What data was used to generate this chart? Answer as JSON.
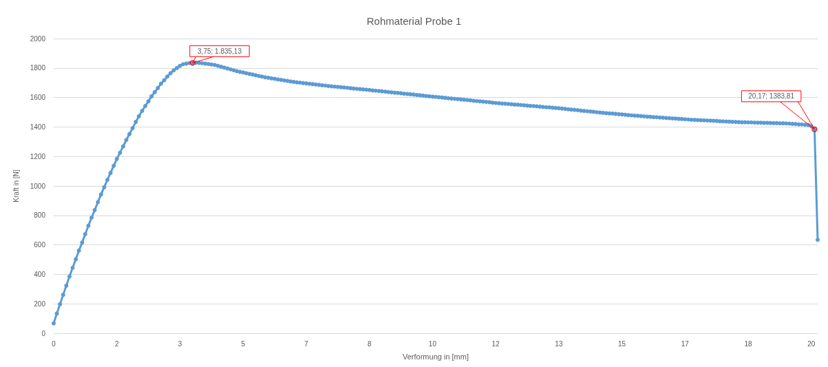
{
  "chart_data": {
    "type": "line",
    "title": "Rohmaterial Probe 1",
    "xlabel": "Verformung in [mm]",
    "ylabel": "Kraft in [N]",
    "categories": [
      "0",
      null,
      null,
      null,
      null,
      null,
      null,
      null,
      null,
      null,
      null,
      null,
      null,
      null,
      null,
      null,
      null,
      null,
      null,
      null,
      "2",
      null,
      null,
      null,
      null,
      null,
      null,
      null,
      null,
      null,
      null,
      null,
      null,
      null,
      null,
      null,
      null,
      null,
      null,
      null,
      "3",
      null,
      null,
      null,
      null,
      null,
      null,
      null,
      null,
      null,
      null,
      null,
      null,
      null,
      null,
      null,
      null,
      null,
      null,
      null,
      "5",
      null,
      null,
      null,
      null,
      null,
      null,
      null,
      null,
      null,
      null,
      null,
      null,
      null,
      null,
      null,
      null,
      null,
      null,
      null,
      "7",
      null,
      null,
      null,
      null,
      null,
      null,
      null,
      null,
      null,
      null,
      null,
      null,
      null,
      null,
      null,
      null,
      null,
      null,
      null,
      "8",
      null,
      null,
      null,
      null,
      null,
      null,
      null,
      null,
      null,
      null,
      null,
      null,
      null,
      null,
      null,
      null,
      null,
      null,
      null,
      "10",
      null,
      null,
      null,
      null,
      null,
      null,
      null,
      null,
      null,
      null,
      null,
      null,
      null,
      null,
      null,
      null,
      null,
      null,
      null,
      "12",
      null,
      null,
      null,
      null,
      null,
      null,
      null,
      null,
      null,
      null,
      null,
      null,
      null,
      null,
      null,
      null,
      null,
      null,
      null,
      "13",
      null,
      null,
      null,
      null,
      null,
      null,
      null,
      null,
      null,
      null,
      null,
      null,
      null,
      null,
      null,
      null,
      null,
      null,
      null,
      "15",
      null,
      null,
      null,
      null,
      null,
      null,
      null,
      null,
      null,
      null,
      null,
      null,
      null,
      null,
      null,
      null,
      null,
      null,
      null,
      "17",
      null,
      null,
      null,
      null,
      null,
      null,
      null,
      null,
      null,
      null,
      null,
      null,
      null,
      null,
      null,
      null,
      null,
      null,
      null,
      "18",
      null,
      null,
      null,
      null,
      null,
      null,
      null,
      null,
      null,
      null,
      null,
      null,
      null,
      null,
      null,
      null,
      null,
      null,
      null,
      "20",
      null,
      null
    ],
    "series": [
      {
        "color": "#5b9bd5",
        "values": [
          67,
          134,
          197,
          261,
          323,
          385,
          444,
          502,
          561,
          615,
          673,
          730,
          785,
          836,
          890,
          942,
          991,
          1041,
          1088,
          1136,
          1183,
          1225,
          1268,
          1312,
          1352,
          1392,
          1434,
          1473,
          1509,
          1542,
          1574,
          1608,
          1636,
          1664,
          1694,
          1717,
          1742,
          1765,
          1784,
          1800,
          1815,
          1826,
          1830,
          1834,
          1835,
          1836,
          1835,
          1833,
          1830,
          1827,
          1824,
          1821,
          1815,
          1809,
          1803,
          1797,
          1791,
          1785,
          1779,
          1774,
          1770,
          1765,
          1760,
          1756,
          1751,
          1746,
          1742,
          1737,
          1734,
          1730,
          1727,
          1723,
          1720,
          1716,
          1713,
          1709,
          1706,
          1703,
          1701,
          1698,
          1696,
          1693,
          1691,
          1688,
          1686,
          1683,
          1681,
          1678,
          1676,
          1674,
          1672,
          1670,
          1668,
          1666,
          1663,
          1661,
          1659,
          1657,
          1655,
          1653,
          1651,
          1648,
          1646,
          1644,
          1642,
          1640,
          1637,
          1635,
          1633,
          1631,
          1629,
          1626,
          1624,
          1622,
          1620,
          1617,
          1615,
          1613,
          1610,
          1608,
          1606,
          1604,
          1602,
          1600,
          1598,
          1595,
          1593,
          1591,
          1589,
          1587,
          1585,
          1583,
          1581,
          1578,
          1576,
          1574,
          1572,
          1570,
          1568,
          1565,
          1563,
          1561,
          1559,
          1558,
          1556,
          1554,
          1552,
          1551,
          1549,
          1547,
          1545,
          1543,
          1542,
          1540,
          1538,
          1536,
          1534,
          1533,
          1531,
          1529,
          1527,
          1525,
          1523,
          1520,
          1518,
          1516,
          1514,
          1511,
          1509,
          1507,
          1505,
          1503,
          1500,
          1498,
          1496,
          1494,
          1492,
          1491,
          1489,
          1487,
          1485,
          1483,
          1481,
          1479,
          1477,
          1476,
          1474,
          1472,
          1470,
          1469,
          1467,
          1466,
          1464,
          1463,
          1461,
          1460,
          1458,
          1457,
          1455,
          1454,
          1452,
          1451,
          1449,
          1448,
          1447,
          1446,
          1445,
          1444,
          1443,
          1442,
          1441,
          1439,
          1438,
          1437,
          1436,
          1435,
          1434,
          1433,
          1432,
          1432,
          1431,
          1431,
          1430,
          1429,
          1429,
          1428,
          1428,
          1427,
          1426,
          1426,
          1425,
          1425,
          1424,
          1423,
          1421,
          1420,
          1418,
          1417,
          1415,
          1413,
          1405,
          1384,
          634
        ]
      }
    ],
    "annotations": [
      {
        "text": "3,75; 1.835,13",
        "y": 1835
      },
      "20,17; 1383,81"
    ],
    "ylim": [
      0,
      2000
    ],
    "yticks": [
      0,
      200,
      400,
      600,
      800,
      {
        "value": 1000,
        "label": "1000"
      },
      {
        "value": 1200,
        "label": "1200"
      },
      {
        "value": 1400,
        "label": "1400"
      },
      {
        "value": 1600,
        "label": "1600"
      },
      {
        "value": 1800,
        "label": "1800"
      },
      {
        "value": 2000,
        "label": "2000"
      }
    ],
    "grid": "y",
    "marker": "circle",
    "line_style": "solid"
  }
}
